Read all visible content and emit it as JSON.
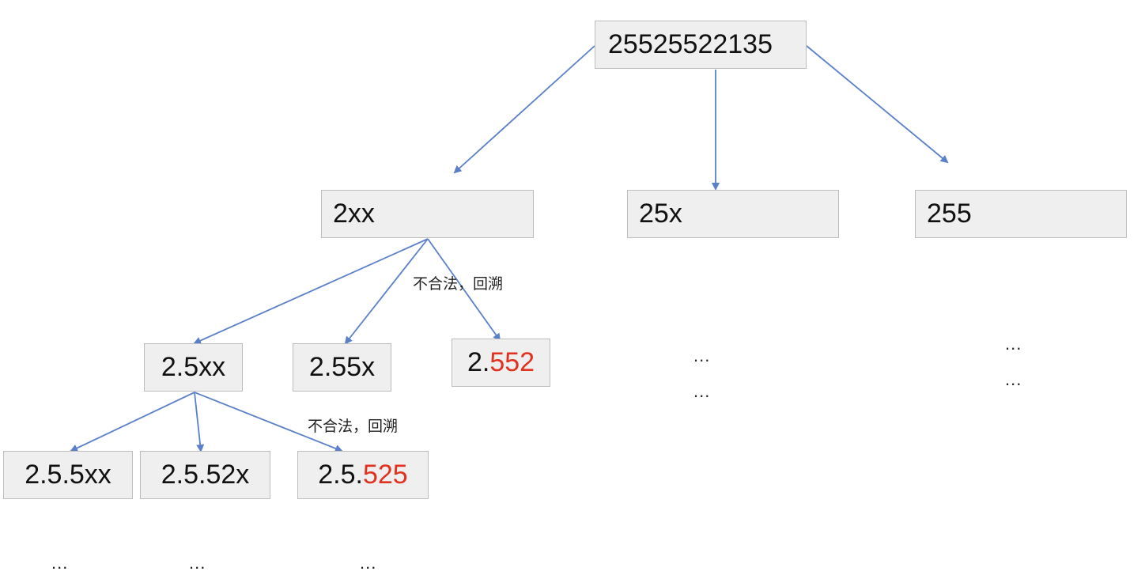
{
  "edge_color": "#5a80c9",
  "invalid_color": "#e0321f",
  "nodes": {
    "root": {
      "text": "25525522135"
    },
    "a": {
      "text": "2xx"
    },
    "b": {
      "text": "25x"
    },
    "c": {
      "text": "255"
    },
    "a1": {
      "text": "2.5xx"
    },
    "a2": {
      "text": "2.55x"
    },
    "a3": {
      "prefix": "2.",
      "invalid": "552"
    },
    "a11": {
      "text": "2.5.5xx"
    },
    "a12": {
      "text": "2.5.52x"
    },
    "a13": {
      "prefix": "2.5.",
      "invalid": "525"
    }
  },
  "notes": {
    "backtrack_1": "不合法，回溯",
    "backtrack_2": "不合法，回溯"
  },
  "ellipsis": {
    "e1": "...",
    "e2": "...",
    "e3": "...",
    "e4": "...",
    "e5": "...",
    "e6": "...",
    "e7": "..."
  }
}
